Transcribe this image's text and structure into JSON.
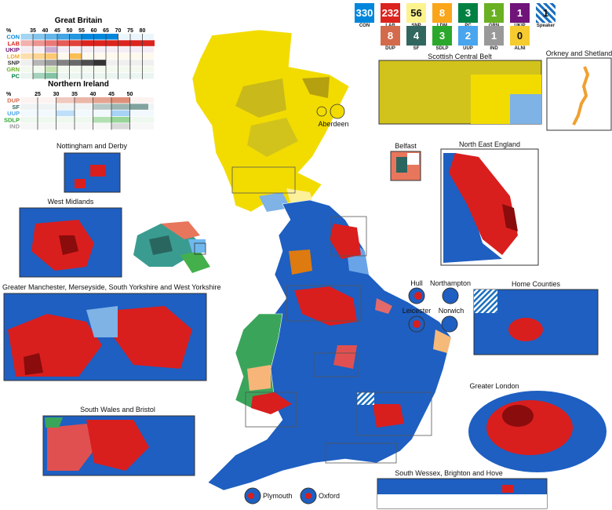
{
  "tally": [
    {
      "party": "CON",
      "seats": "330",
      "color": "#0087DC",
      "text": "#fff"
    },
    {
      "party": "LAB",
      "seats": "232",
      "color": "#DC241F",
      "text": "#fff"
    },
    {
      "party": "SNP",
      "seats": "56",
      "color": "#FDF38E",
      "text": "#111"
    },
    {
      "party": "LDM",
      "seats": "8",
      "color": "#FAA61A",
      "text": "#fff"
    },
    {
      "party": "PC",
      "seats": "3",
      "color": "#008142",
      "text": "#fff"
    },
    {
      "party": "GRN",
      "seats": "1",
      "color": "#6AB023",
      "text": "#fff"
    },
    {
      "party": "UKIP",
      "seats": "1",
      "color": "#70147A",
      "text": "#fff"
    },
    {
      "party": "Speaker",
      "seats": "1",
      "color": "#6fc3ea",
      "text": "#111"
    },
    {
      "party": "DUP",
      "seats": "8",
      "color": "#D46A4C",
      "text": "#fff"
    },
    {
      "party": "SF",
      "seats": "4",
      "color": "#326760",
      "text": "#fff"
    },
    {
      "party": "SDLP",
      "seats": "3",
      "color": "#2AA82C",
      "text": "#fff"
    },
    {
      "party": "UUP",
      "seats": "2",
      "color": "#48A5EE",
      "text": "#fff"
    },
    {
      "party": "IND",
      "seats": "1",
      "color": "#999999",
      "text": "#fff"
    },
    {
      "party": "ALNI",
      "seats": "0",
      "color": "#F6CB2F",
      "text": "#111"
    }
  ],
  "gb_legend": {
    "title": "Great Britain",
    "unit": "%",
    "ticks": [
      "35",
      "40",
      "45",
      "50",
      "55",
      "60",
      "65",
      "70",
      "75",
      "80"
    ],
    "rows": [
      {
        "party": "CON",
        "color": "#0087DC"
      },
      {
        "party": "LAB",
        "color": "#DC241F"
      },
      {
        "party": "UKIP",
        "color": "#70147A"
      },
      {
        "party": "LDM",
        "color": "#FAA61A"
      },
      {
        "party": "SNP",
        "color": "#333333"
      },
      {
        "party": "GRN",
        "color": "#6AB023"
      },
      {
        "party": "PC",
        "color": "#008142"
      }
    ]
  },
  "ni_legend": {
    "title": "Northern Ireland",
    "unit": "%",
    "ticks": [
      "25",
      "30",
      "35",
      "40",
      "45",
      "50"
    ],
    "rows": [
      {
        "party": "DUP",
        "color": "#D46A4C"
      },
      {
        "party": "SF",
        "color": "#326760"
      },
      {
        "party": "UUP",
        "color": "#48A5EE"
      },
      {
        "party": "SDLP",
        "color": "#2AA82C"
      },
      {
        "party": "IND",
        "color": "#999999"
      }
    ]
  },
  "insets": {
    "scottish_central_belt": "Scottish Central Belt",
    "orkney": "Orkney and Shetland",
    "belfast": "Belfast",
    "north_east": "North East England",
    "nottingham": "Nottingham and Derby",
    "west_midlands": "West Midlands",
    "manchester": "Greater Manchester, Merseyside, South Yorkshire and West Yorkshire",
    "south_wales": "South Wales and Bristol",
    "home_counties": "Home Counties",
    "london": "Greater London",
    "wessex": "South Wessex, Brighton and Hove",
    "hull": "Hull",
    "northampton": "Northampton",
    "leicester": "Leicester",
    "norwich": "Norwich",
    "plymouth": "Plymouth",
    "oxford": "Oxford",
    "aberdeen": "Aberdeen"
  }
}
